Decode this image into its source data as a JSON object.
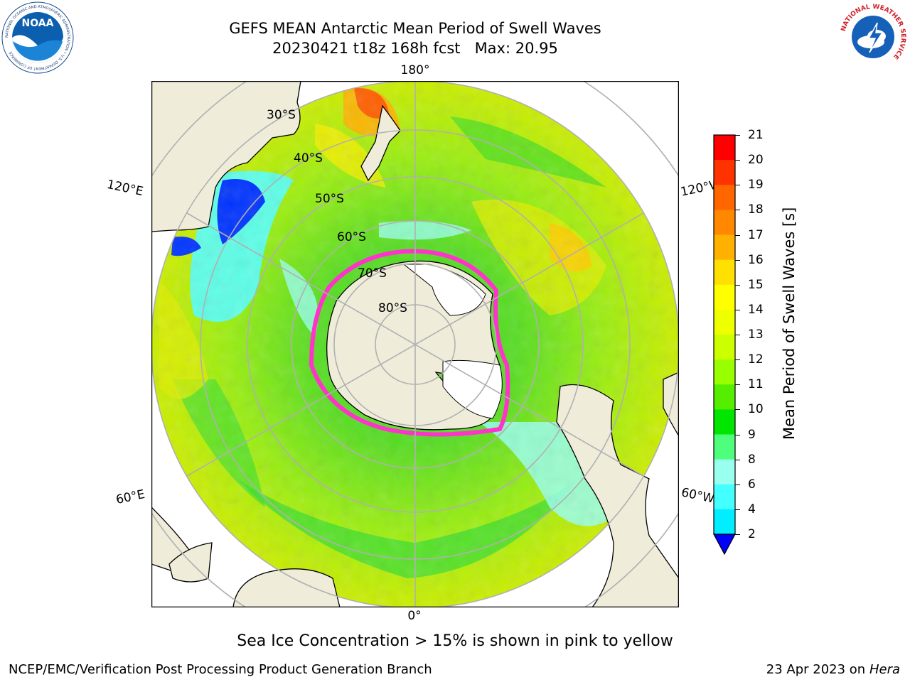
{
  "title": {
    "line1": "GEFS MEAN Antarctic Mean Period of Swell Waves",
    "line2": "20230421 t18z 168h fcst   Max: 20.95"
  },
  "logos": {
    "noaa_text": "NOAA",
    "noaa_ring": "NATIONAL OCEANIC AND ATMOSPHERIC ADMINISTRATION • U.S. DEPARTMENT OF COMMERCE",
    "nws_ring": "NATIONAL WEATHER SERVICE"
  },
  "map": {
    "projection": "south-polar-stereographic",
    "lon_labels": {
      "top": "180°",
      "bottom": "0°",
      "upper_left": "120°E",
      "upper_right": "120°W",
      "lower_left": "60°E",
      "lower_right": "60°W"
    },
    "lat_labels": [
      "30°S",
      "40°S",
      "50°S",
      "60°S",
      "70°S",
      "80°S"
    ]
  },
  "colorbar": {
    "label": "Mean Period of Swell Waves [s]",
    "ticks": [
      "21",
      "20",
      "19",
      "18",
      "17",
      "16",
      "15",
      "14",
      "13",
      "12",
      "11",
      "10",
      "9",
      "8",
      "6",
      "4",
      "2"
    ],
    "colors": [
      "#ff0000",
      "#ff3300",
      "#ff6600",
      "#ff8800",
      "#ffb000",
      "#ffe000",
      "#ffff00",
      "#eeff00",
      "#ccff00",
      "#99ff00",
      "#55ee00",
      "#00e600",
      "#4dff7a",
      "#99ffee",
      "#44ffff",
      "#00eeff",
      "#0088ff",
      "#0000ff"
    ],
    "extend": "min"
  },
  "caption": "Sea Ice Concentration > 15% is shown in pink to yellow",
  "footer": {
    "left": "NCEP/EMC/Verification Post Processing Product Generation Branch",
    "right_prefix": "23 Apr 2023 on ",
    "right_machine": "Hera"
  }
}
